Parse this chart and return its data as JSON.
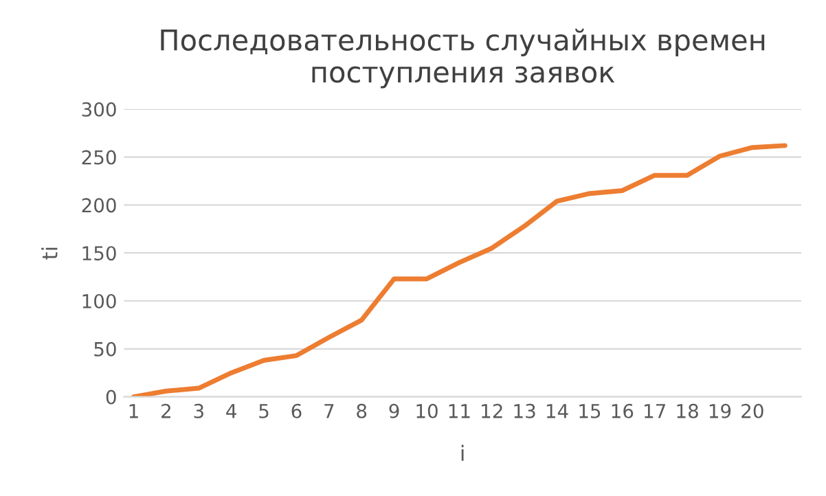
{
  "chart_data": {
    "type": "line",
    "title": "Последовательность случайных времен\nпоступления заявок",
    "xlabel": "i",
    "ylabel": "ti",
    "categories": [
      "1",
      "2",
      "3",
      "4",
      "5",
      "6",
      "7",
      "8",
      "9",
      "10",
      "11",
      "12",
      "13",
      "14",
      "15",
      "16",
      "17",
      "18",
      "19",
      "20",
      null
    ],
    "series": [
      {
        "color": "#ed7d31",
        "values": [
          0,
          6,
          9,
          25,
          38,
          43,
          62,
          80,
          123,
          123,
          140,
          155,
          178,
          204,
          212,
          215,
          231,
          231,
          251,
          260,
          262
        ]
      }
    ],
    "ylim": [
      0,
      300
    ],
    "yticks": [
      0,
      50,
      100,
      150,
      200,
      250,
      300
    ],
    "grid": "y",
    "legend": false,
    "marker": "none",
    "line_style": "solid"
  }
}
